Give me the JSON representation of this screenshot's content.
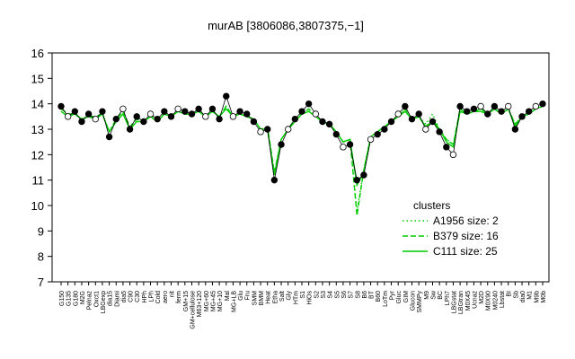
{
  "chart_data": {
    "type": "line",
    "title": "murAB [3806086,3807375,−1]",
    "xlabel": "",
    "ylabel": "",
    "ylim": [
      7,
      16
    ],
    "yticks": [
      7,
      8,
      9,
      10,
      11,
      12,
      13,
      14,
      15,
      16
    ],
    "grid": false,
    "legend": {
      "title": "clusters",
      "placement": "right",
      "entries": [
        {
          "label": "A1956 size: 2",
          "style": "dotted",
          "color": "#00cc00"
        },
        {
          "label": "B379 size: 16",
          "style": "dashed",
          "color": "#00cc00"
        },
        {
          "label": "C111 size: 25",
          "style": "solid",
          "color": "#00cc00"
        }
      ]
    },
    "categories": [
      "G150",
      "G135",
      "G180",
      "M2G",
      "Pelnaz",
      "Oxct1",
      "LBGexp",
      "dia15",
      "Diami",
      "dia5",
      "C90",
      "C30",
      "HPh",
      "LPh",
      "Cold",
      "aero",
      "nit",
      "ferm",
      "GM+15",
      "GM+cellulose",
      "M63+120",
      "MG+60",
      "MG+45",
      "MG+10",
      "Mal",
      "MG+LB",
      "Glu",
      "Fru",
      "SMM",
      "BMM",
      "Heat",
      "Etha",
      "Salt",
      "Gly",
      "HTm",
      "S1",
      "HiOs",
      "S2",
      "S3",
      "S4",
      "S5",
      "S6",
      "S7",
      "S8",
      "B6",
      "BT",
      "B60",
      "LoTm",
      "Pyr",
      "Gluc",
      "GIM",
      "Glucon",
      "SMMPy",
      "M9",
      "Sw",
      "BC",
      "LPh7",
      "LBGstat",
      "LBGtran",
      "M0X45",
      "Ucnaz",
      "M2D",
      "M0X90",
      "M0240",
      "Lbstat",
      "BI",
      "Sb",
      "dia0",
      "M1",
      "M9b",
      "M0b"
    ],
    "series": [
      {
        "name": "probe",
        "marker": "circle",
        "color": "#000000",
        "values": [
          13.9,
          13.5,
          13.7,
          13.3,
          13.6,
          13.4,
          13.7,
          12.7,
          13.4,
          13.8,
          13.0,
          13.5,
          13.3,
          13.6,
          13.4,
          13.7,
          13.5,
          13.8,
          13.7,
          13.6,
          13.8,
          13.5,
          13.8,
          13.4,
          14.3,
          13.5,
          13.7,
          13.6,
          13.3,
          12.9,
          13.0,
          11.0,
          12.4,
          13.0,
          13.4,
          13.7,
          14.0,
          13.6,
          13.3,
          13.2,
          12.8,
          12.3,
          12.4,
          11.0,
          11.2,
          12.6,
          12.8,
          13.0,
          13.3,
          13.6,
          13.9,
          13.4,
          13.6,
          13.0,
          13.3,
          12.9,
          12.3,
          12.0,
          13.9,
          13.7,
          13.8,
          13.9,
          13.6,
          13.9,
          13.7,
          13.9,
          13.0,
          13.5,
          13.7,
          13.9,
          14.0
        ]
      },
      {
        "name": "A1956 size: 2",
        "style": "dotted",
        "color": "#00cc00",
        "values": [
          13.8,
          13.6,
          13.6,
          13.4,
          13.5,
          13.5,
          13.6,
          12.9,
          13.4,
          13.7,
          13.1,
          13.4,
          13.3,
          13.5,
          13.4,
          13.6,
          13.5,
          13.7,
          13.6,
          13.6,
          13.7,
          13.5,
          13.7,
          13.5,
          13.9,
          13.5,
          13.6,
          13.5,
          13.4,
          13.0,
          13.1,
          11.3,
          12.6,
          13.0,
          13.4,
          13.6,
          13.8,
          13.5,
          13.3,
          13.2,
          12.9,
          12.5,
          12.6,
          9.8,
          11.4,
          12.7,
          12.9,
          13.1,
          13.3,
          13.5,
          13.8,
          13.4,
          13.5,
          13.2,
          13.6,
          13.0,
          12.6,
          12.4,
          13.8,
          13.6,
          13.7,
          13.8,
          13.6,
          13.8,
          13.6,
          13.8,
          13.2,
          13.5,
          13.6,
          13.8,
          13.9
        ]
      },
      {
        "name": "B379 size: 16",
        "style": "dashed",
        "color": "#00cc00",
        "values": [
          13.8,
          13.6,
          13.6,
          13.4,
          13.5,
          13.5,
          13.6,
          12.9,
          13.4,
          13.7,
          13.1,
          13.4,
          13.3,
          13.5,
          13.4,
          13.6,
          13.5,
          13.7,
          13.6,
          13.6,
          13.7,
          13.5,
          13.7,
          13.5,
          13.9,
          13.5,
          13.6,
          13.5,
          13.4,
          13.0,
          13.1,
          11.3,
          12.6,
          13.0,
          13.4,
          13.6,
          13.8,
          13.5,
          13.3,
          13.2,
          12.9,
          12.5,
          12.6,
          9.6,
          11.4,
          12.7,
          12.9,
          13.1,
          13.3,
          13.5,
          13.8,
          13.4,
          13.5,
          13.1,
          13.4,
          13.0,
          12.6,
          12.4,
          13.8,
          13.6,
          13.7,
          13.8,
          13.6,
          13.8,
          13.6,
          13.8,
          13.2,
          13.5,
          13.6,
          13.8,
          13.9
        ]
      },
      {
        "name": "C111 size: 25",
        "style": "solid",
        "color": "#00cc00",
        "values": [
          13.7,
          13.5,
          13.6,
          13.4,
          13.5,
          13.4,
          13.6,
          12.9,
          13.3,
          13.6,
          13.0,
          13.3,
          13.3,
          13.5,
          13.3,
          13.6,
          13.5,
          13.7,
          13.6,
          13.6,
          13.7,
          13.5,
          13.7,
          13.5,
          13.8,
          13.5,
          13.6,
          13.5,
          13.4,
          13.0,
          13.0,
          11.2,
          12.6,
          13.0,
          13.3,
          13.6,
          13.7,
          13.5,
          13.3,
          13.2,
          12.9,
          12.5,
          12.6,
          10.8,
          11.3,
          12.7,
          12.9,
          13.1,
          13.3,
          13.5,
          13.7,
          13.4,
          13.5,
          13.1,
          13.3,
          13.0,
          12.5,
          12.3,
          13.7,
          13.6,
          13.7,
          13.7,
          13.6,
          13.8,
          13.6,
          13.8,
          13.1,
          13.5,
          13.6,
          13.8,
          13.9
        ]
      }
    ]
  }
}
